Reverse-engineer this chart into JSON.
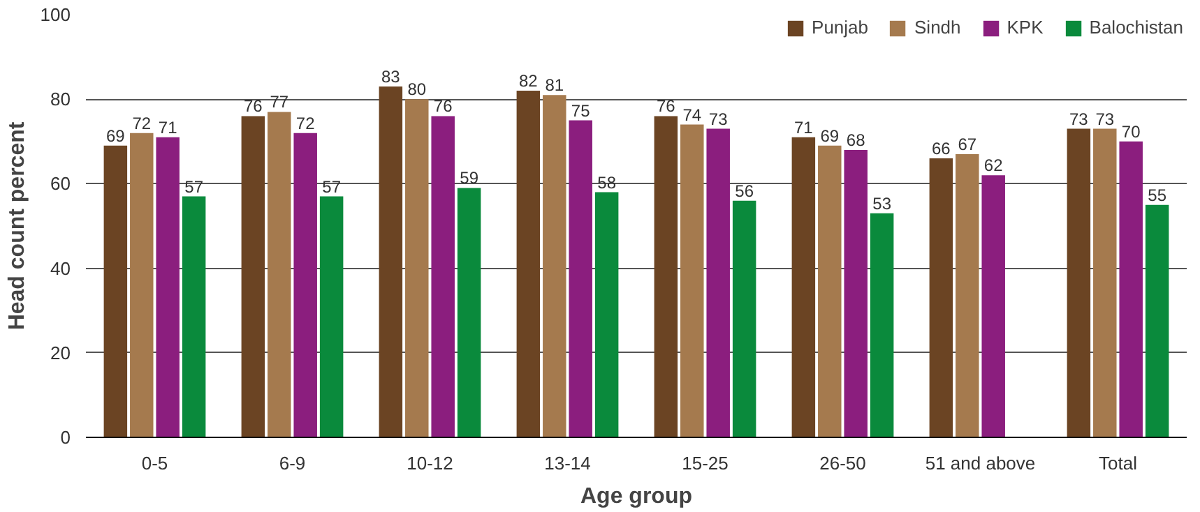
{
  "chart_data": {
    "type": "bar",
    "xlabel": "Age group",
    "ylabel": "Head count percent",
    "categories": [
      "0-5",
      "6-9",
      "10-12",
      "13-14",
      "15-25",
      "26-50",
      "51 and above",
      "Total"
    ],
    "series": [
      {
        "name": "Punjab",
        "color": "#6b4423",
        "values": [
          69,
          76,
          83,
          82,
          76,
          71,
          66,
          73
        ]
      },
      {
        "name": "Sindh",
        "color": "#a57a4e",
        "values": [
          72,
          77,
          80,
          81,
          74,
          69,
          67,
          73
        ]
      },
      {
        "name": "KPK",
        "color": "#8b1e7e",
        "values": [
          71,
          72,
          76,
          75,
          73,
          68,
          62,
          70
        ]
      },
      {
        "name": "Balochistan",
        "color": "#0a8a3c",
        "values": [
          57,
          57,
          59,
          58,
          56,
          53,
          null,
          55
        ]
      }
    ],
    "ylim": [
      0,
      100
    ],
    "yticks": [
      0,
      20,
      40,
      60,
      80,
      100
    ],
    "grid": "y",
    "legend": "top right",
    "data_labels": true
  }
}
